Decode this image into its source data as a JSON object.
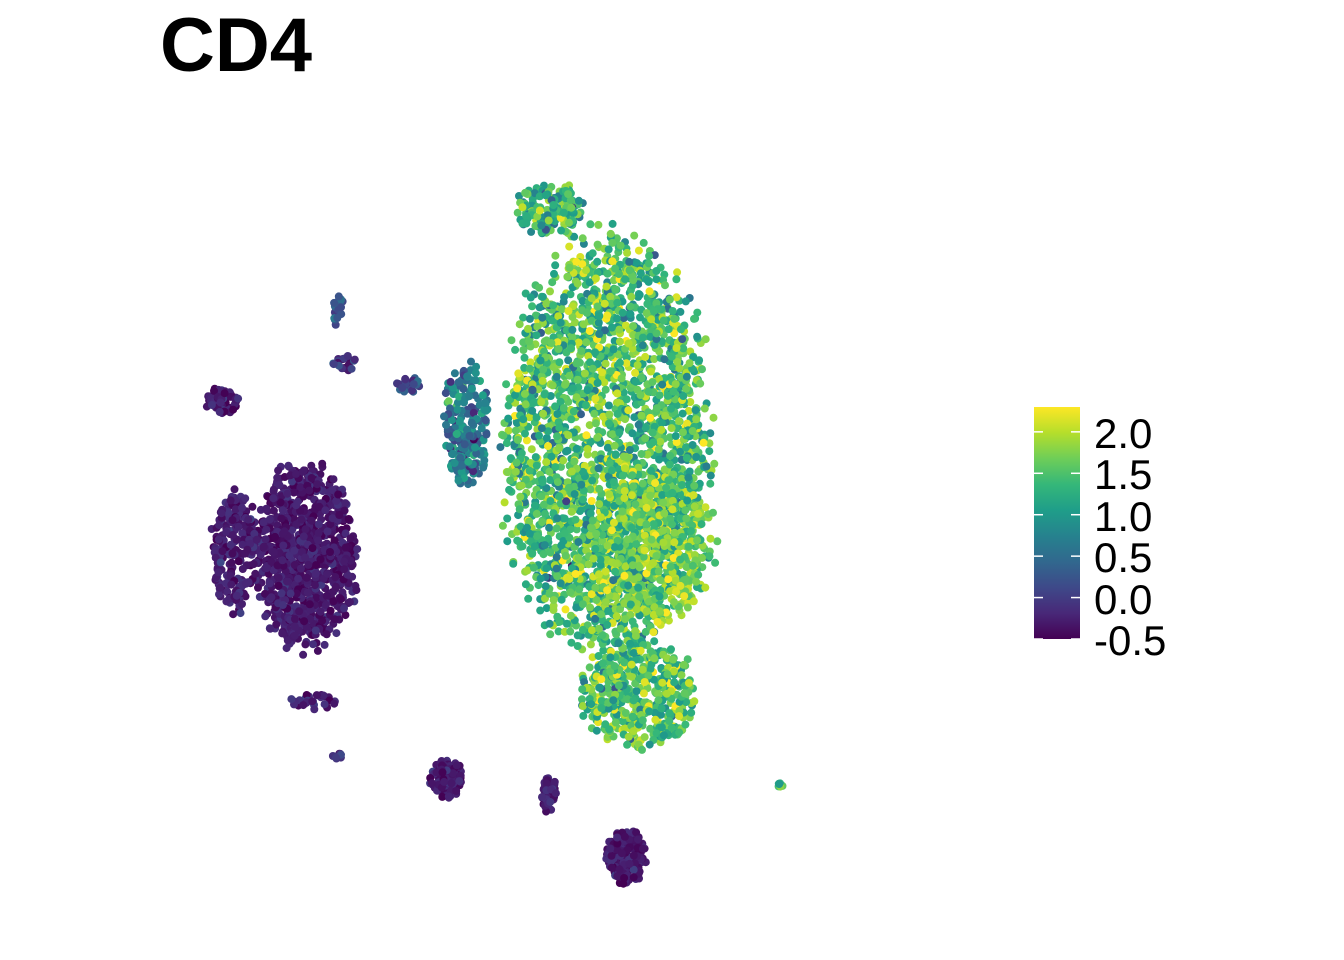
{
  "chart_data": {
    "type": "scatter",
    "title": "CD4",
    "xlabel": "",
    "ylabel": "",
    "grid": false,
    "axes_visible": false,
    "color_scale": {
      "name": "viridis",
      "min": -0.5,
      "max": 2.3,
      "ticks": [
        "2.0",
        "1.5",
        "1.0",
        "0.5",
        "0.0",
        "-0.5"
      ],
      "tick_values": [
        2.0,
        1.5,
        1.0,
        0.5,
        0.0,
        -0.5
      ],
      "colors": [
        "#440154",
        "#482878",
        "#3e4989",
        "#31688e",
        "#26828e",
        "#1f9e89",
        "#35b779",
        "#6ece58",
        "#b5de2b",
        "#fde725"
      ]
    },
    "legend_position": "right",
    "clusters": [
      {
        "x": 0.05,
        "y": 0.55,
        "spread": [
          0.16,
          0.27
        ],
        "n": 2600,
        "value_mean": 1.45,
        "value_sd": 0.42
      },
      {
        "x": -0.17,
        "y": 0.58,
        "spread": [
          0.035,
          0.08
        ],
        "n": 220,
        "value_mean": 0.65,
        "value_sd": 0.35
      },
      {
        "x": -0.04,
        "y": 0.86,
        "spread": [
          0.05,
          0.035
        ],
        "n": 170,
        "value_mean": 1.3,
        "value_sd": 0.4
      },
      {
        "x": 0.12,
        "y": 0.42,
        "spread": [
          0.1,
          0.1
        ],
        "n": 500,
        "value_mean": 1.7,
        "value_sd": 0.35
      },
      {
        "x": 0.1,
        "y": 0.23,
        "spread": [
          0.09,
          0.07
        ],
        "n": 450,
        "value_mean": 1.5,
        "value_sd": 0.4
      },
      {
        "x": -0.42,
        "y": 0.41,
        "spread": [
          0.08,
          0.12
        ],
        "n": 900,
        "value_mean": -0.3,
        "value_sd": 0.12
      },
      {
        "x": -0.53,
        "y": 0.42,
        "spread": [
          0.035,
          0.08
        ],
        "n": 220,
        "value_mean": -0.28,
        "value_sd": 0.12
      },
      {
        "x": -0.55,
        "y": 0.61,
        "spread": [
          0.025,
          0.018
        ],
        "n": 60,
        "value_mean": -0.25,
        "value_sd": 0.15
      },
      {
        "x": -0.37,
        "y": 0.73,
        "spread": [
          0.008,
          0.025
        ],
        "n": 20,
        "value_mean": 0.3,
        "value_sd": 0.2
      },
      {
        "x": -0.36,
        "y": 0.66,
        "spread": [
          0.02,
          0.01
        ],
        "n": 18,
        "value_mean": -0.1,
        "value_sd": 0.2
      },
      {
        "x": -0.26,
        "y": 0.63,
        "spread": [
          0.02,
          0.012
        ],
        "n": 22,
        "value_mean": 0.2,
        "value_sd": 0.2
      },
      {
        "x": -0.41,
        "y": 0.22,
        "spread": [
          0.04,
          0.012
        ],
        "n": 28,
        "value_mean": -0.2,
        "value_sd": 0.15
      },
      {
        "x": -0.2,
        "y": 0.12,
        "spread": [
          0.025,
          0.025
        ],
        "n": 140,
        "value_mean": -0.3,
        "value_sd": 0.12
      },
      {
        "x": -0.04,
        "y": 0.1,
        "spread": [
          0.012,
          0.025
        ],
        "n": 50,
        "value_mean": -0.28,
        "value_sd": 0.12
      },
      {
        "x": 0.08,
        "y": 0.02,
        "spread": [
          0.03,
          0.035
        ],
        "n": 200,
        "value_mean": -0.32,
        "value_sd": 0.12
      },
      {
        "x": -0.37,
        "y": 0.15,
        "spread": [
          0.01,
          0.005
        ],
        "n": 8,
        "value_mean": 0.0,
        "value_sd": 0.2
      },
      {
        "x": 0.32,
        "y": 0.11,
        "spread": [
          0.008,
          0.005
        ],
        "n": 6,
        "value_mean": 1.5,
        "value_sd": 0.3
      }
    ]
  }
}
